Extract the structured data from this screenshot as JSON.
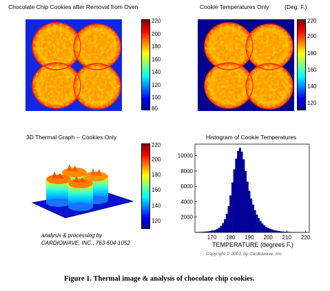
{
  "panels": {
    "thermal": {
      "title": "Chocolate Chip Cookies after Removal from Oven",
      "colorbar_ticks": [
        "220",
        "200",
        "180",
        "160",
        "140",
        "120",
        "100",
        "80"
      ]
    },
    "cookies_only": {
      "title": "Cookie Temperatures Only",
      "unit": "(Deg. F.)",
      "colorbar_ticks": [
        "220",
        "200",
        "180",
        "160",
        "140",
        "120"
      ]
    },
    "graph3d": {
      "title": "3D Thermal Graph -- Cookies Only",
      "colorbar_ticks": [
        "220",
        "200",
        "180",
        "160",
        "140",
        "120"
      ],
      "credit_line1": "analysis & processing by",
      "credit_line2": "CARDIOWAVE,  INC.,  763-504-1052"
    }
  },
  "chart_data": {
    "type": "bar",
    "title": "Histogram of Cookie Temperatures",
    "xlabel": "TEMPERATURE  (degrees F.)",
    "ylabel": "",
    "xlim": [
      161,
      222
    ],
    "ylim": [
      0,
      11500
    ],
    "xticks": [
      170,
      180,
      190,
      200,
      210,
      220
    ],
    "yticks": [
      2000,
      4000,
      6000,
      8000,
      10000
    ],
    "bin_width": 1,
    "x": [
      162,
      163,
      164,
      165,
      166,
      167,
      168,
      169,
      170,
      171,
      172,
      173,
      174,
      175,
      176,
      177,
      178,
      179,
      180,
      181,
      182,
      183,
      184,
      185,
      186,
      187,
      188,
      189,
      190,
      191,
      192,
      193,
      194,
      195,
      196,
      197,
      198,
      199,
      200,
      201,
      202,
      203,
      204,
      205,
      206,
      207,
      208,
      209,
      210,
      211,
      212,
      213,
      214,
      215,
      216,
      217,
      218,
      219,
      220
    ],
    "values": [
      30,
      40,
      50,
      60,
      80,
      100,
      120,
      160,
      200,
      260,
      330,
      450,
      600,
      850,
      1200,
      1700,
      2400,
      3400,
      4800,
      6500,
      8200,
      9600,
      10600,
      11000,
      10500,
      9500,
      8000,
      6600,
      5400,
      4400,
      3600,
      2900,
      2300,
      1850,
      1450,
      1150,
      900,
      720,
      580,
      460,
      370,
      300,
      240,
      190,
      150,
      120,
      95,
      75,
      60,
      50,
      40,
      30,
      25,
      20,
      15,
      10,
      8,
      5,
      3
    ]
  },
  "copyright": "Copyright © 2003,  by Cardiowave, Inc.",
  "caption": "Figure 1.  Thermal image & analysis of chocolate chip cookies."
}
